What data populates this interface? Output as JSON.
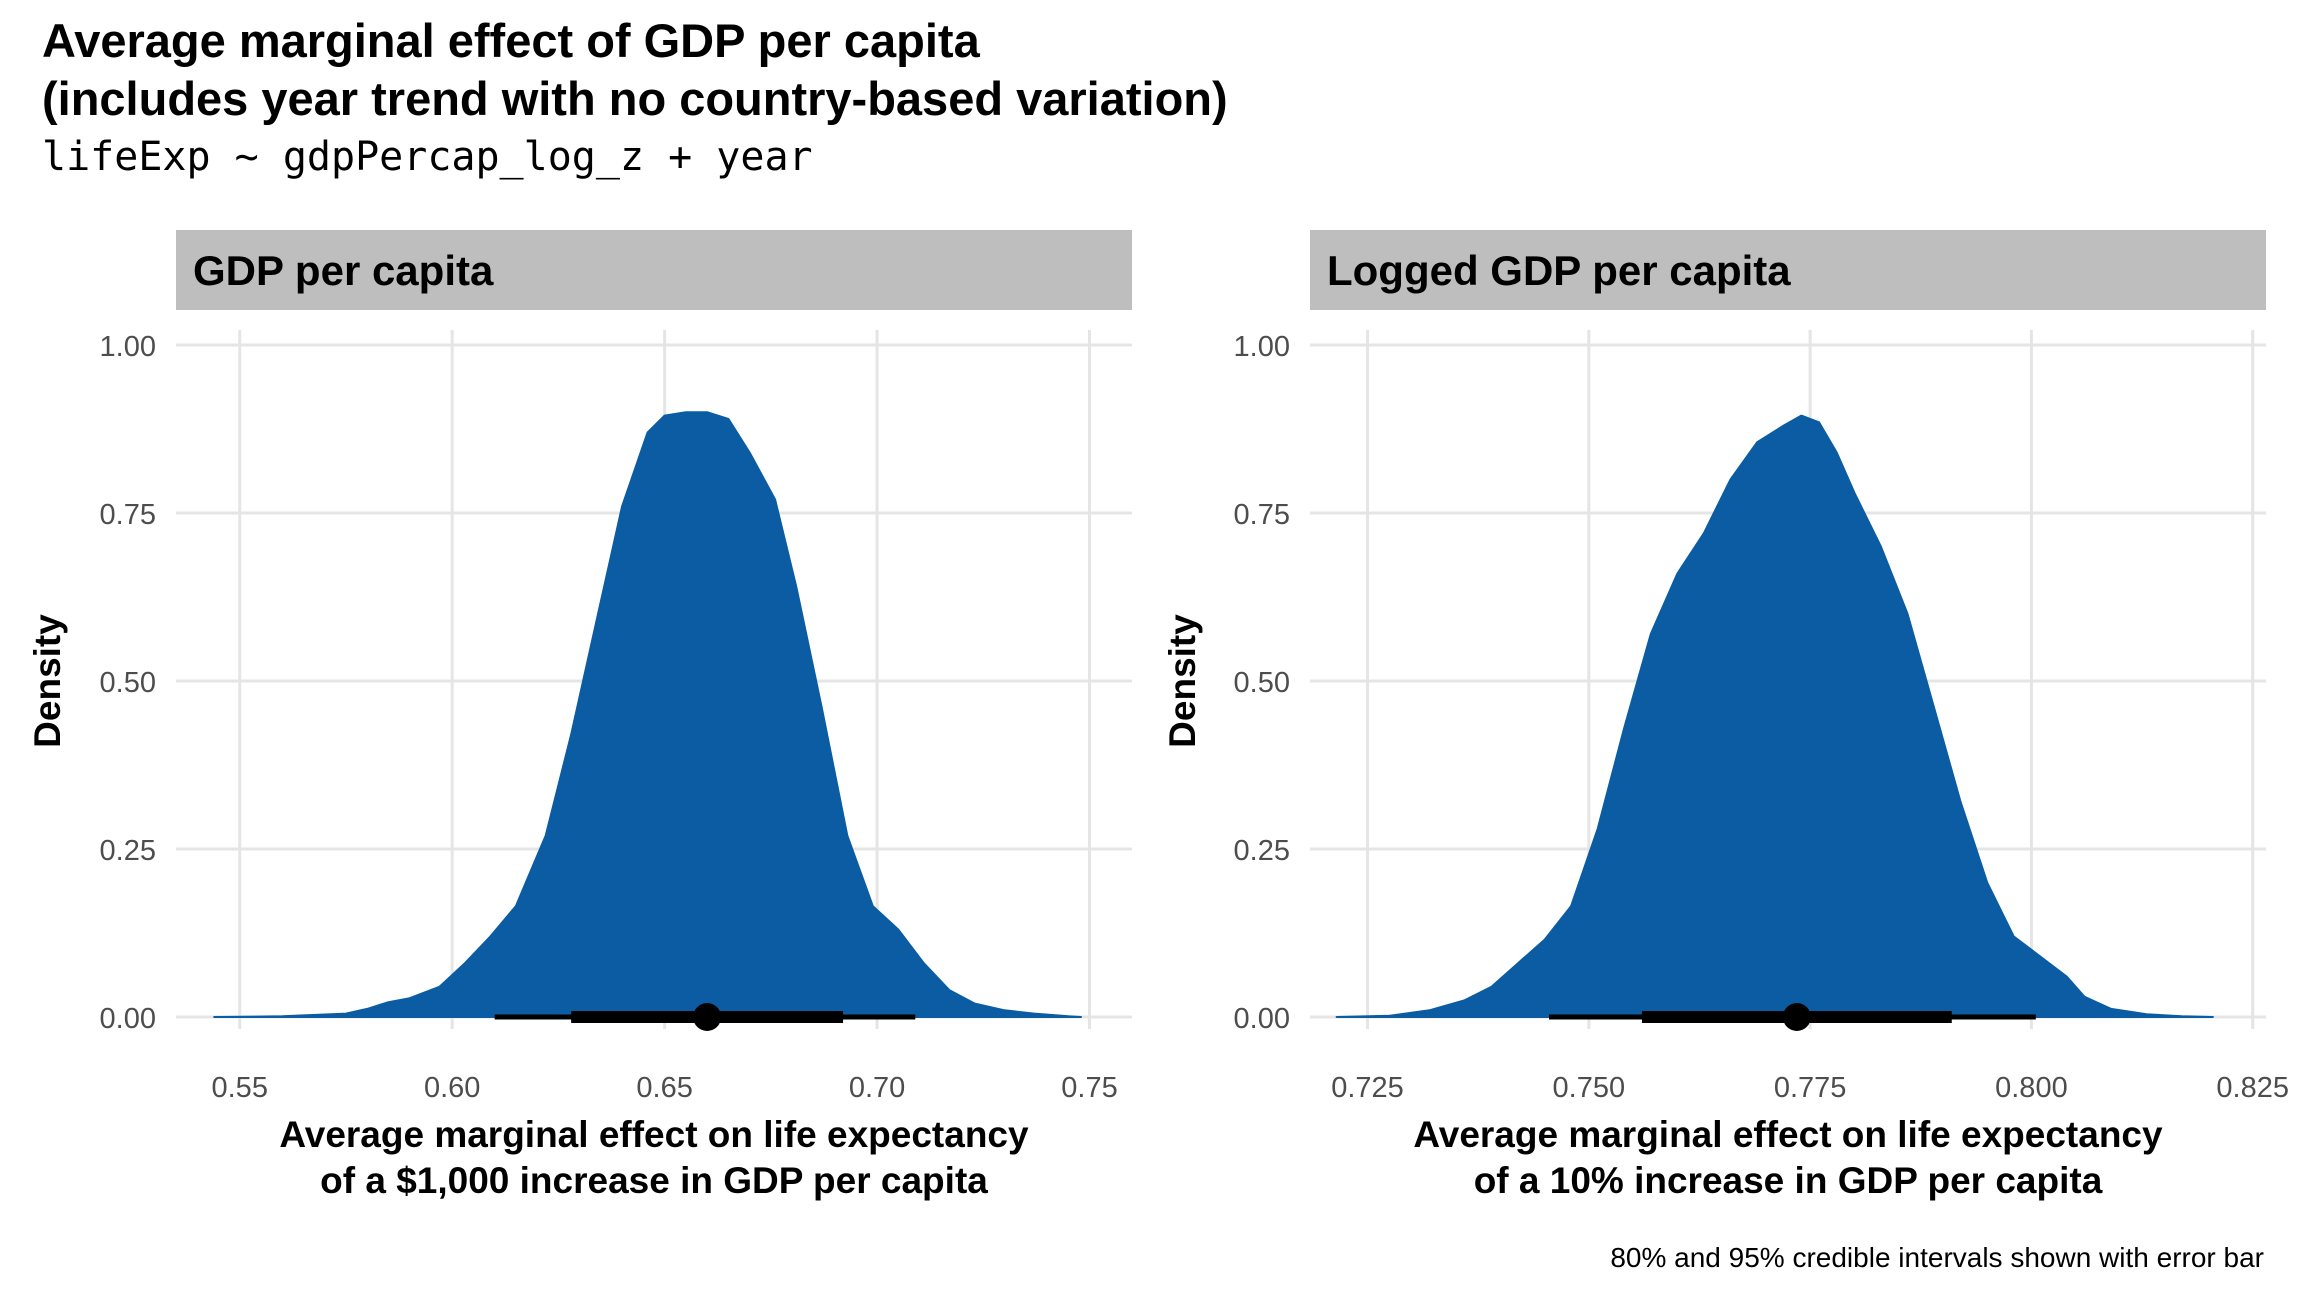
{
  "title_line1": "Average marginal effect of GDP per capita",
  "title_line2": "(includes year trend with no country-based variation)",
  "subtitle": "lifeExp ~ gdpPercap_log_z + year",
  "caption": "80% and 95% credible intervals shown with error bar",
  "colors": {
    "fill": "#0b5ca2",
    "strip": "#bebebe",
    "grid": "#e5e5e5",
    "interval": "#000000"
  },
  "chart_data": [
    {
      "type": "area",
      "panel_title": "GDP per capita",
      "xlabel_line1": "Average marginal effect on life expectancy",
      "xlabel_line2": "of a $1,000 increase in GDP per capita",
      "ylabel": "Density",
      "xlim": [
        0.535,
        0.76
      ],
      "ylim": [
        0,
        1.0
      ],
      "x_ticks": [
        0.55,
        0.6,
        0.65,
        0.7,
        0.75
      ],
      "x_tick_labels": [
        "0.55",
        "0.60",
        "0.65",
        "0.70",
        "0.75"
      ],
      "y_ticks": [
        0,
        0.25,
        0.5,
        0.75,
        1.0
      ],
      "y_tick_labels": [
        "0.00",
        "0.25",
        "0.50",
        "0.75",
        "1.00"
      ],
      "density": {
        "x": [
          0.544,
          0.56,
          0.575,
          0.58,
          0.585,
          0.59,
          0.597,
          0.603,
          0.609,
          0.615,
          0.622,
          0.628,
          0.634,
          0.64,
          0.646,
          0.65,
          0.655,
          0.66,
          0.665,
          0.67,
          0.676,
          0.681,
          0.687,
          0.693,
          0.699,
          0.705,
          0.711,
          0.717,
          0.723,
          0.73,
          0.737,
          0.745,
          0.748
        ],
        "y": [
          0.0,
          0.001,
          0.005,
          0.012,
          0.022,
          0.028,
          0.045,
          0.08,
          0.12,
          0.165,
          0.27,
          0.42,
          0.59,
          0.76,
          0.87,
          0.895,
          0.9,
          0.9,
          0.89,
          0.84,
          0.77,
          0.64,
          0.46,
          0.27,
          0.165,
          0.13,
          0.08,
          0.04,
          0.02,
          0.01,
          0.005,
          0.001,
          0.0
        ]
      },
      "median": 0.66,
      "interval_80": [
        0.628,
        0.692
      ],
      "interval_95": [
        0.61,
        0.709
      ]
    },
    {
      "type": "area",
      "panel_title": "Logged GDP per capita",
      "xlabel_line1": "Average marginal effect on life expectancy",
      "xlabel_line2": "of a 10% increase in GDP per capita",
      "ylabel": "Density",
      "xlim": [
        0.7185,
        0.8265
      ],
      "ylim": [
        0,
        1.0
      ],
      "x_ticks": [
        0.725,
        0.75,
        0.775,
        0.8,
        0.825
      ],
      "x_tick_labels": [
        "0.725",
        "0.750",
        "0.775",
        "0.800",
        "0.825"
      ],
      "y_ticks": [
        0,
        0.25,
        0.5,
        0.75,
        1.0
      ],
      "y_tick_labels": [
        "0.00",
        "0.25",
        "0.50",
        "0.75",
        "1.00"
      ],
      "density": {
        "x": [
          0.7215,
          0.7275,
          0.732,
          0.736,
          0.739,
          0.742,
          0.745,
          0.748,
          0.751,
          0.754,
          0.757,
          0.76,
          0.763,
          0.766,
          0.769,
          0.772,
          0.774,
          0.776,
          0.778,
          0.78,
          0.783,
          0.786,
          0.789,
          0.792,
          0.795,
          0.798,
          0.801,
          0.804,
          0.806,
          0.809,
          0.813,
          0.817,
          0.8205
        ],
        "y": [
          0.0,
          0.002,
          0.01,
          0.025,
          0.045,
          0.08,
          0.115,
          0.165,
          0.28,
          0.43,
          0.57,
          0.66,
          0.72,
          0.8,
          0.855,
          0.88,
          0.895,
          0.885,
          0.84,
          0.78,
          0.7,
          0.6,
          0.46,
          0.32,
          0.2,
          0.12,
          0.09,
          0.06,
          0.03,
          0.012,
          0.004,
          0.001,
          0.0
        ]
      },
      "median": 0.7735,
      "interval_80": [
        0.756,
        0.791
      ],
      "interval_95": [
        0.7455,
        0.8005
      ]
    }
  ]
}
